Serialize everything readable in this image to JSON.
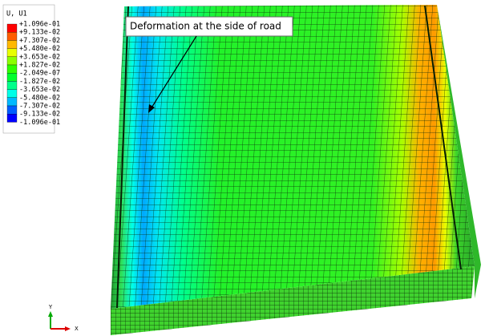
{
  "legend": {
    "title": "U, U1",
    "labels": [
      "+1.096e-01",
      "+9.133e-02",
      "+7.307e-02",
      "+5.480e-02",
      "+3.653e-02",
      "+1.827e-02",
      "-2.049e-07",
      "-1.827e-02",
      "-3.653e-02",
      "-5.480e-02",
      "-7.307e-02",
      "-9.133e-02",
      "-1.096e-01"
    ],
    "colors": [
      "#ff0000",
      "#ff5d00",
      "#ffb900",
      "#e8ff00",
      "#8bff00",
      "#2eff00",
      "#00ff2e",
      "#00ff8b",
      "#00ffe8",
      "#00b9ff",
      "#005dff",
      "#0000ff"
    ]
  },
  "annotation": "Deformation at the side of road",
  "triad": {
    "y": "Y",
    "x": "X"
  }
}
